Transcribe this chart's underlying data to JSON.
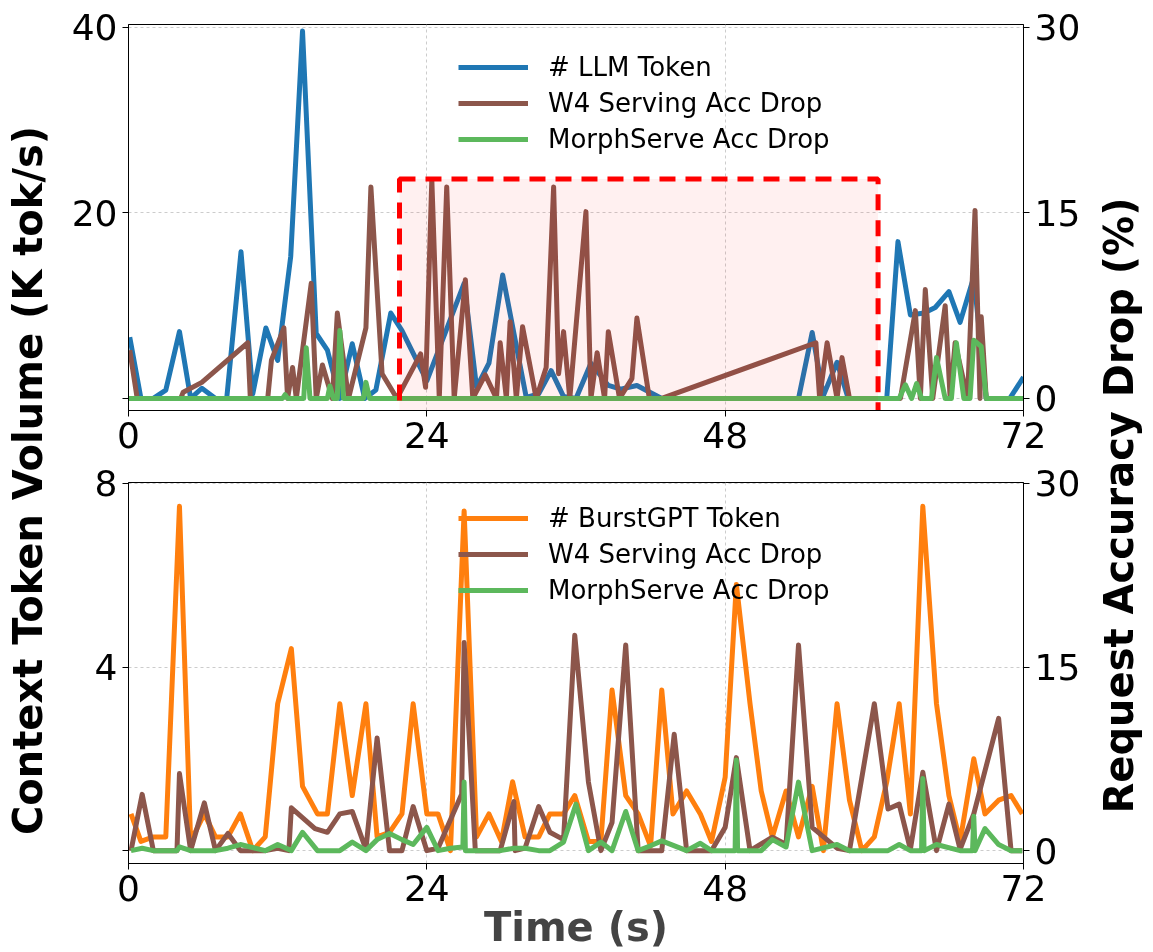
{
  "chart_data": [
    {
      "type": "line",
      "ylim": [
        -1.3,
        40.3
      ],
      "yticks": [
        {
          "value": 0,
          "label": null
        },
        20,
        40
      ],
      "y2lim": [
        -0.975,
        30.225
      ],
      "y2ticks": [
        0,
        15,
        30
      ],
      "xlim": [
        0,
        72
      ],
      "xticks": [
        0,
        24,
        48,
        72
      ],
      "grid": true,
      "legend": "top right",
      "bands": [
        {
          "axis": "x",
          "from": 21.8,
          "to": 60.3,
          "color": "#ff0000"
        }
      ],
      "ylabel": "Context Token Volume (K tok/s)",
      "y2label": "Request Accuracy Drop (%)",
      "series": [
        {
          "name": "# LLM Token",
          "color": "#1f77b4",
          "x": [
            0.1,
            1,
            2,
            3,
            4.1,
            5,
            5.9,
            7,
            7.9,
            9.05,
            10,
            11.05,
            12,
            13.05,
            14,
            15.1,
            16,
            17,
            18,
            19,
            19.9,
            21.1,
            22,
            24,
            27,
            28,
            29,
            30.1,
            32,
            33,
            34,
            35,
            36,
            37.2,
            38.6,
            39.6,
            40.9,
            42.9,
            53.9,
            55,
            55.9,
            57,
            57.9,
            61,
            61.9,
            62.9,
            64,
            64.9,
            66,
            66.9,
            68,
            69,
            70.9,
            72
          ],
          "values": [
            6.6,
            0,
            0,
            0.9,
            7.2,
            0,
            1.1,
            0,
            0,
            15.8,
            0.5,
            7.6,
            4.1,
            15.3,
            39.6,
            7.0,
            5.2,
            0,
            5.9,
            0,
            0.9,
            9.2,
            7.3,
            1.9,
            12.4,
            1.2,
            3.8,
            13.3,
            0.1,
            0.5,
            3.0,
            0.2,
            0,
            3.8,
            1.4,
            1.0,
            1.4,
            0,
            0,
            7.1,
            0.3,
            3.9,
            0,
            0,
            16.9,
            9.0,
            9.2,
            9.8,
            11.5,
            8.2,
            13.1,
            0,
            0,
            2.3
          ]
        },
        {
          "name": "W4 Serving Acc Drop",
          "color": "#8c564b",
          "axis": "y2",
          "x": [
            0.1,
            0.7,
            4.2,
            4.4,
            5.9,
            9.6,
            9.8,
            11.2,
            11.5,
            12.5,
            12.8,
            13.2,
            13.5,
            14.7,
            15.1,
            15.6,
            16.4,
            16.8,
            17.7,
            19.1,
            19.5,
            20.4,
            21.6,
            23.5,
            23.9,
            24.4,
            25.0,
            25.6,
            26.2,
            27.1,
            27.7,
            28.7,
            29.6,
            29.9,
            30.4,
            30.7,
            31.2,
            31.7,
            32.8,
            33.6,
            34.2,
            34.6,
            35.0,
            35.5,
            36.8,
            37.2,
            37.7,
            38.3,
            38.6,
            39.5,
            40.5,
            40.9,
            41.9,
            42.9,
            55.3,
            55.6,
            56.2,
            57.0,
            57.4,
            58.0,
            62.1,
            63.3,
            63.7,
            64.1,
            64.7,
            65.7,
            66.1,
            66.5,
            67.5,
            68.1,
            68.5,
            68.6,
            69.0,
            72
          ],
          "values": [
            3.9,
            0,
            0,
            0.5,
            1.3,
            4.5,
            0,
            0,
            3.1,
            5.7,
            0,
            2.5,
            0,
            9.3,
            0,
            2.7,
            0,
            6.9,
            0,
            5.7,
            17.1,
            2.0,
            0,
            3.6,
            0.9,
            17.7,
            0,
            17.1,
            0,
            9.6,
            0,
            1.9,
            0,
            4.5,
            0,
            6.2,
            0,
            5.8,
            0,
            2.5,
            17.1,
            2.0,
            5.4,
            0,
            15.1,
            0,
            3.7,
            0,
            5.4,
            0,
            1.6,
            6.5,
            0,
            0,
            4.5,
            0,
            4.5,
            0,
            3.3,
            0,
            0,
            7.1,
            0,
            8.8,
            0,
            7.5,
            0,
            4.5,
            0,
            15.2,
            0,
            6.6,
            0,
            0
          ]
        },
        {
          "name": "MorphServe Acc Drop",
          "color": "#5cb85c",
          "axis": "y2",
          "x": [
            0,
            12.4,
            12.6,
            12.8,
            14.1,
            14.3,
            14.6,
            16.0,
            16.2,
            16.5,
            16.8,
            17.0,
            17.3,
            18.9,
            19.1,
            19.4,
            62.0,
            62.5,
            63.0,
            63.4,
            63.8,
            64.6,
            65.0,
            65.7,
            66.2,
            66.6,
            67.2,
            67.7,
            68.0,
            68.6,
            69.0,
            72
          ],
          "values": [
            0,
            0,
            0.3,
            0,
            0,
            4.1,
            0,
            0,
            1.0,
            0,
            0,
            5.5,
            0,
            0,
            1.3,
            0,
            0,
            1.1,
            0,
            1.2,
            0,
            0,
            3.3,
            0,
            0,
            4.5,
            0,
            0,
            4.7,
            4.2,
            0,
            0
          ]
        }
      ]
    },
    {
      "type": "line",
      "ylim": [
        -0.28,
        8.02
      ],
      "yticks": [
        {
          "value": 0,
          "label": null
        },
        4,
        8
      ],
      "y2lim": [
        -1.05,
        30.07
      ],
      "y2ticks": [
        0,
        15,
        30
      ],
      "xlim": [
        0,
        72
      ],
      "xticks": [
        0,
        24,
        48,
        72
      ],
      "grid": true,
      "legend": "top right",
      "xlabel": "Time (s)",
      "series": [
        {
          "name": "# BurstGPT Token",
          "color": "#ff7f0e",
          "x": [
            0.2,
            1,
            2,
            3,
            4.1,
            5,
            6.1,
            7,
            8,
            9,
            10,
            11,
            12,
            13.1,
            14,
            15.2,
            16,
            17,
            18,
            19.1,
            20,
            21,
            22,
            22.9,
            24,
            24.9,
            25.9,
            27,
            28,
            29,
            30,
            30.9,
            31.9,
            33,
            33.9,
            35,
            35.9,
            37,
            38,
            38.9,
            40,
            41,
            42,
            42.9,
            43.8,
            44.9,
            46,
            46.9,
            48,
            48.9,
            50,
            50.9,
            51.8,
            52.9,
            53.9,
            55,
            55.9,
            57,
            58,
            59,
            60,
            61,
            62,
            62.9,
            63.9,
            65,
            66,
            66.9,
            68,
            68.9,
            70,
            71,
            71.9
          ],
          "values": [
            0.8,
            0.2,
            0.3,
            0.3,
            7.5,
            0.2,
            0.8,
            0.3,
            0.3,
            0.8,
            0.0,
            0.3,
            3.2,
            4.4,
            1.4,
            0.8,
            0.8,
            3.2,
            1.2,
            3.2,
            0.3,
            0.4,
            0.8,
            3.2,
            0.8,
            0.8,
            0,
            7.4,
            0.3,
            0.8,
            0.2,
            1.5,
            0.3,
            0.3,
            0.8,
            0.8,
            1.2,
            0.2,
            0.2,
            3.5,
            1.2,
            0.8,
            0.1,
            3.5,
            0.8,
            1.3,
            0.8,
            0.2,
            1.6,
            5.8,
            3.2,
            1.3,
            0.3,
            1.3,
            0.3,
            1.4,
            0.0,
            3.2,
            1.1,
            0.0,
            0.3,
            1.5,
            3.2,
            0.8,
            7.5,
            3.2,
            1.2,
            0.2,
            2.0,
            0.8,
            1.1,
            1.2,
            0.8
          ]
        },
        {
          "name": "W4 Serving Acc Drop",
          "color": "#8c564b",
          "axis": "y2",
          "x": [
            0.2,
            1.1,
            2,
            3.9,
            4.1,
            5,
            6.1,
            7,
            8,
            9,
            11,
            12,
            12.9,
            13.1,
            15,
            16,
            17,
            18,
            19.1,
            20,
            21,
            22,
            22.9,
            24,
            24.9,
            26.8,
            27,
            27.9,
            29.9,
            31,
            31.1,
            31.9,
            33,
            33.9,
            35,
            35.9,
            37,
            38,
            38.9,
            40,
            41,
            42.9,
            43.9,
            44.9,
            46.9,
            48,
            48.9,
            50,
            51.8,
            52.9,
            53.9,
            55,
            57,
            58,
            60,
            61.1,
            62,
            62.9,
            63.9,
            65,
            66,
            66.9,
            68,
            70,
            71,
            71.9
          ],
          "values": [
            0,
            4.6,
            0,
            0,
            6.3,
            0,
            3.9,
            0,
            1.4,
            0,
            0,
            0.2,
            0,
            3.5,
            1.8,
            1.5,
            3.0,
            3.2,
            0.1,
            9.2,
            0,
            0,
            3.6,
            0,
            0.2,
            4.6,
            17.0,
            0,
            0,
            4.0,
            0,
            0.2,
            3.6,
            1.5,
            0.9,
            17.6,
            5.6,
            0,
            2.3,
            16.8,
            0,
            0,
            9.5,
            0,
            0,
            1.9,
            7.6,
            0,
            1.1,
            0.5,
            16.8,
            1.9,
            0.2,
            0,
            12.0,
            3.4,
            3.8,
            0.1,
            6.4,
            0,
            3.8,
            0.1,
            3.0,
            10.8,
            0,
            0
          ]
        },
        {
          "name": "MorphServe Acc Drop",
          "color": "#5cb85c",
          "axis": "y2",
          "x": [
            0.2,
            1.1,
            2,
            3.9,
            4.1,
            5,
            7,
            8,
            9,
            11,
            12,
            13.1,
            14,
            15.2,
            17,
            18,
            19.1,
            20,
            21,
            22,
            22.9,
            24,
            24.9,
            25.9,
            26.9,
            27,
            27.1,
            28,
            29.9,
            31,
            31.9,
            33,
            33.9,
            35,
            36,
            37,
            38,
            38.9,
            40,
            41,
            42,
            42.9,
            44.9,
            46,
            46.9,
            48.8,
            48.9,
            49.0,
            50.9,
            51.8,
            52.9,
            53.9,
            55,
            57,
            58,
            61.1,
            62,
            62.9,
            63.8,
            63.9,
            64,
            65,
            66.9,
            67.9,
            68,
            68.1,
            68.9,
            70,
            71,
            71.9
          ],
          "values": [
            0,
            0.2,
            0,
            0,
            0.3,
            0,
            0,
            0.2,
            0.5,
            0,
            0.5,
            0,
            1.5,
            0,
            0,
            0.7,
            0,
            0.9,
            1.4,
            0.9,
            0.5,
            1.9,
            0,
            0.2,
            0.3,
            5.6,
            0,
            0,
            0,
            0.2,
            0.2,
            0,
            0,
            0.7,
            3.8,
            0,
            0.7,
            0,
            3.2,
            0,
            0.4,
            0.8,
            0,
            0.6,
            0,
            0,
            7.4,
            0,
            0,
            0.9,
            0.3,
            5.6,
            0,
            0.5,
            0,
            0,
            0.5,
            0,
            0,
            5.9,
            0,
            0.5,
            0,
            0,
            2.8,
            0,
            1.8,
            0.5,
            0,
            0
          ]
        }
      ]
    }
  ]
}
